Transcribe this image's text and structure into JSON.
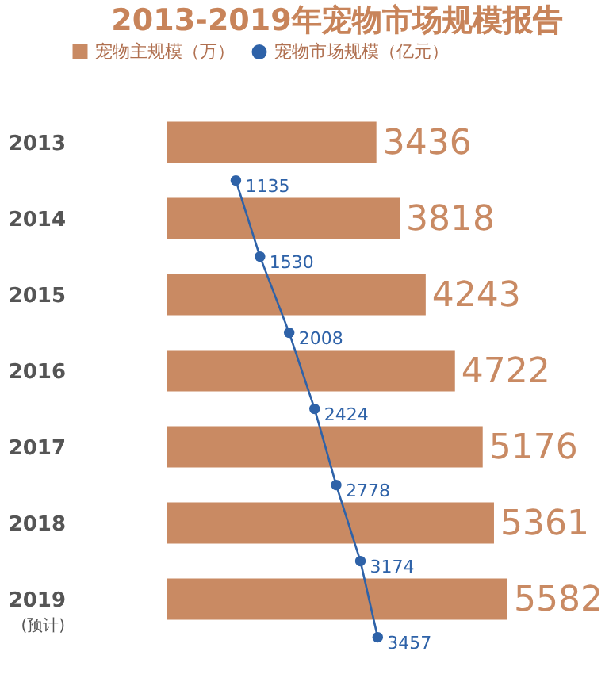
{
  "chart_data": {
    "type": "bar",
    "orientation": "horizontal",
    "title": "2013-2019年宠物市场规模报告",
    "categories": [
      "2013",
      "2014",
      "2015",
      "2016",
      "2017",
      "2018",
      "2019"
    ],
    "series": [
      {
        "name": "宠物主规模（万）",
        "color": "#c98a63",
        "values": [
          3436,
          3818,
          4243,
          4722,
          5176,
          5361,
          5582
        ]
      },
      {
        "name": "宠物市场规模（亿元）",
        "color": "#2e62a8",
        "type": "line",
        "marker": "circle",
        "values": [
          1135,
          1530,
          2008,
          2424,
          2778,
          3174,
          3457
        ]
      }
    ],
    "data_labels": true,
    "tick_labels": "y",
    "legend": "top left",
    "grid": false,
    "annotations": [
      "(预计)"
    ]
  }
}
